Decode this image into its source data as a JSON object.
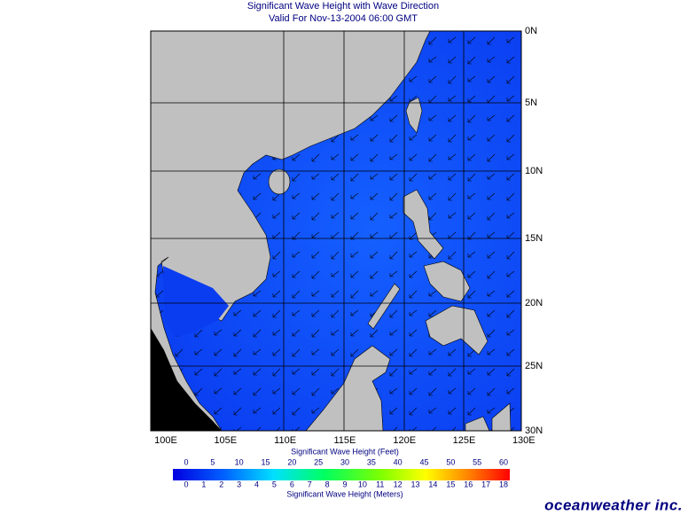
{
  "header": {
    "title": "Significant Wave Height with Wave Direction",
    "subtitle": "Valid For Nov-13-2004 06:00 GMT"
  },
  "map": {
    "lon_labels": [
      "100E",
      "105E",
      "110E",
      "115E",
      "120E",
      "125E",
      "130E"
    ],
    "lat_labels": [
      "30N",
      "25N",
      "20N",
      "15N",
      "10N",
      "5N",
      "0N"
    ]
  },
  "colorbar": {
    "feet_title": "Significant Wave Height (Feet)",
    "feet_labels": [
      0,
      5,
      10,
      15,
      20,
      25,
      30,
      35,
      40,
      45,
      50,
      55,
      60
    ],
    "meters_title": "Significant Wave Height (Meters)",
    "meters_labels": [
      0,
      1,
      2,
      3,
      4,
      5,
      6,
      7,
      8,
      9,
      10,
      11,
      12,
      13,
      14,
      15,
      16,
      17,
      18
    ]
  },
  "logo": "oceanweather inc."
}
